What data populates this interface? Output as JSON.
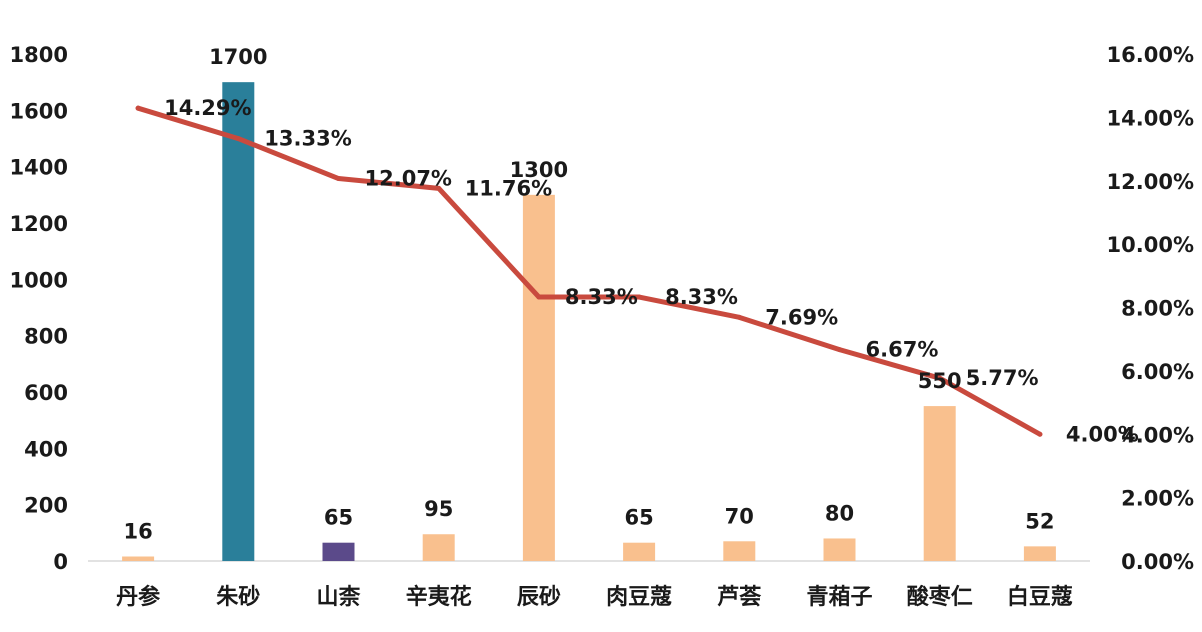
{
  "chart_data": {
    "type": "bar+line",
    "categories": [
      "丹参",
      "朱砂",
      "山柰",
      "辛夷花",
      "辰砂",
      "肉豆蔻",
      "芦荟",
      "青葙子",
      "酸枣仁",
      "白豆蔻"
    ],
    "series": [
      {
        "type": "bar",
        "axis": "left",
        "values": [
          16,
          1700,
          65,
          95,
          1300,
          65,
          70,
          80,
          550,
          52
        ],
        "value_labels": [
          "16",
          "1700",
          "65",
          "95",
          "1300",
          "65",
          "70",
          "80",
          "550",
          "52"
        ],
        "colors": [
          "#F9C08E",
          "#2A7F9A",
          "#5B4A8A",
          "#F9C08E",
          "#F9C08E",
          "#F9C08E",
          "#F9C08E",
          "#F9C08E",
          "#F9C08E",
          "#F9C08E"
        ]
      },
      {
        "type": "line",
        "axis": "right",
        "values": [
          14.29,
          13.33,
          12.07,
          11.76,
          8.33,
          8.33,
          7.69,
          6.67,
          5.77,
          4.0
        ],
        "value_labels": [
          "14.29%",
          "13.33%",
          "12.07%",
          "11.76%",
          "8.33%",
          "8.33%",
          "7.69%",
          "6.67%",
          "5.77%",
          "4.00%"
        ],
        "color": "#C94A3E"
      }
    ],
    "left_axis": {
      "range": [
        0,
        1800
      ],
      "ticks": [
        0,
        200,
        400,
        600,
        800,
        1000,
        1200,
        1400,
        1600,
        1800
      ],
      "tick_labels": [
        "0",
        "200",
        "400",
        "600",
        "800",
        "1000",
        "1200",
        "1400",
        "1600",
        "1800"
      ]
    },
    "right_axis": {
      "range": [
        0,
        16
      ],
      "ticks": [
        0,
        2,
        4,
        6,
        8,
        10,
        12,
        14,
        16
      ],
      "tick_labels": [
        "0.00%",
        "2.00%",
        "4.00%",
        "6.00%",
        "8.00%",
        "10.00%",
        "12.00%",
        "14.00%",
        "16.00%"
      ]
    },
    "grid": false,
    "legend": "none"
  }
}
